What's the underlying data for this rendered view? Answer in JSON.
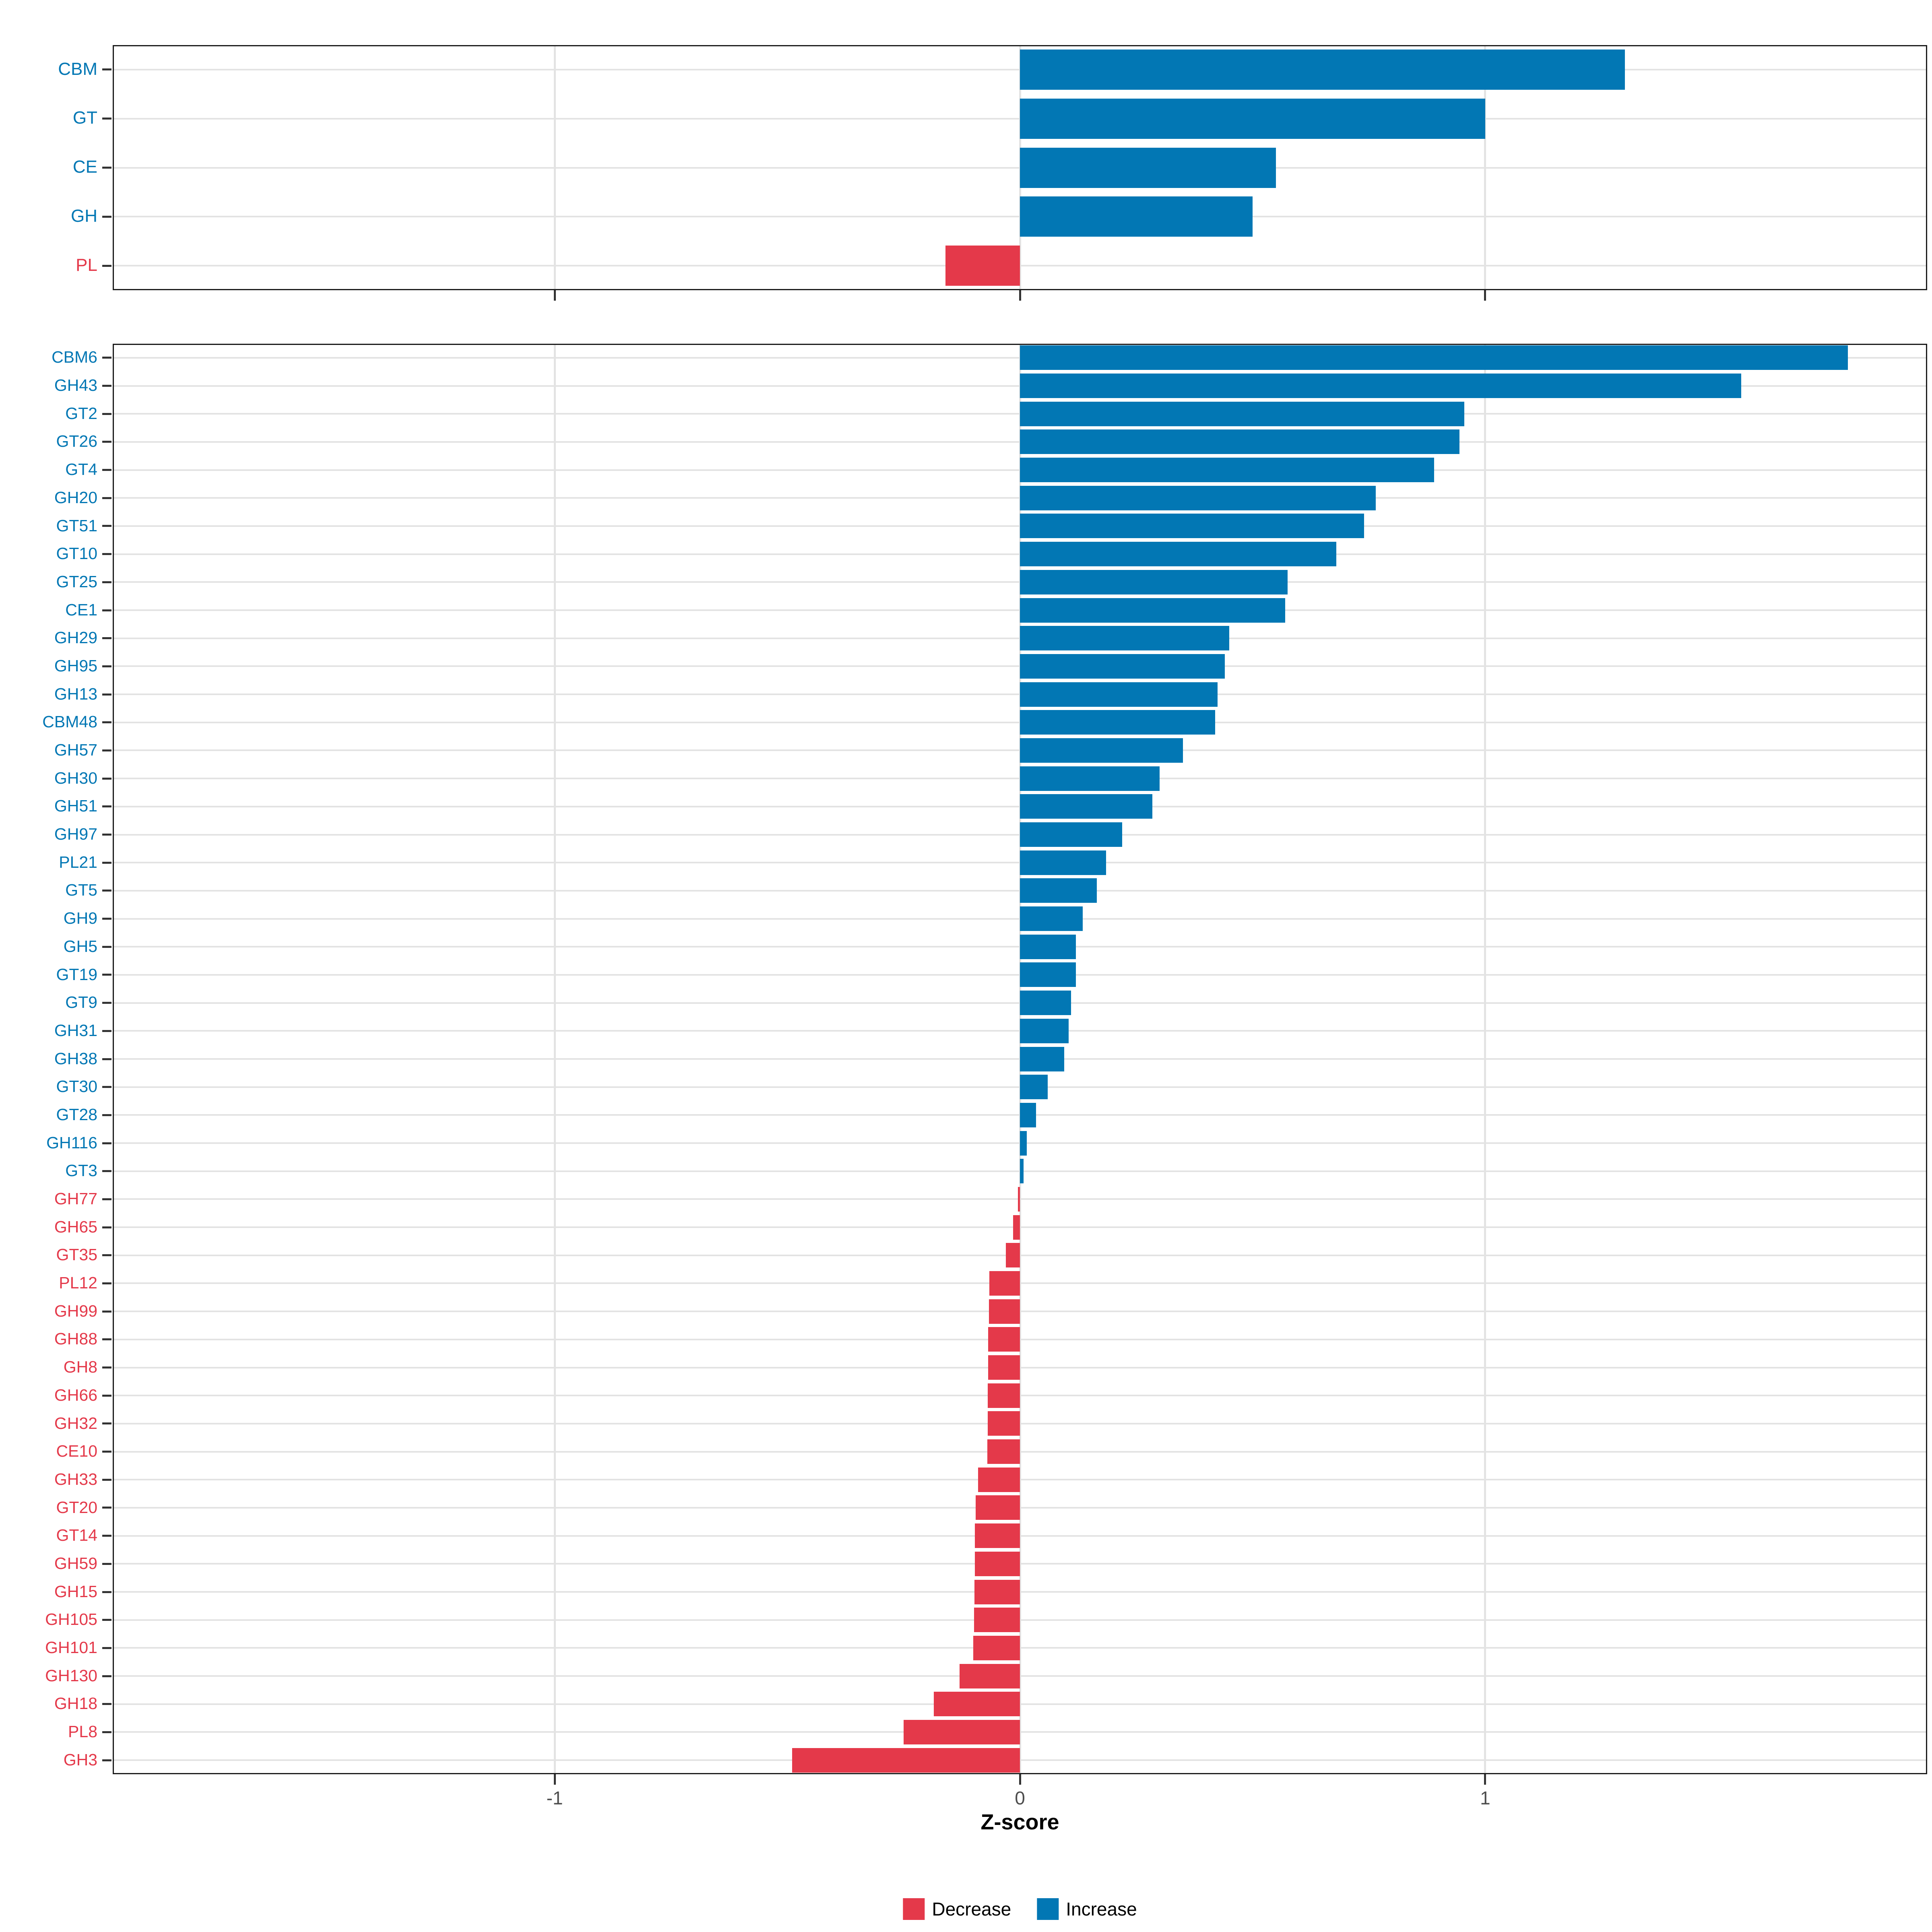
{
  "axis": {
    "title": "Z-score",
    "tick_values": [
      -1,
      0,
      1
    ],
    "tick_labels": [
      "-1",
      "0",
      "1"
    ],
    "xlim": [
      -1.95,
      1.95
    ]
  },
  "legend": {
    "items": [
      {
        "label": "Decrease",
        "color": "#e4394a"
      },
      {
        "label": "Increase",
        "color": "#0277b4"
      }
    ]
  },
  "colors": {
    "increase": "#0277b4",
    "decrease": "#e4394a",
    "grid": "#e3e3e3",
    "panel_border": "#1b1b1b",
    "tick": "#333333",
    "tick_label": "#4d4d4d"
  },
  "chart_data": [
    {
      "type": "bar",
      "orientation": "horizontal",
      "panel": "cazyme-classes",
      "categories": [
        "CBM",
        "GT",
        "CE",
        "GH",
        "PL"
      ],
      "values": [
        1.3,
        1.0,
        0.55,
        0.5,
        -0.16
      ]
    },
    {
      "type": "bar",
      "orientation": "horizontal",
      "panel": "cazyme-families",
      "categories": [
        "CBM6",
        "GH43",
        "GT2",
        "GT26",
        "GT4",
        "GH20",
        "GT51",
        "GT10",
        "GT25",
        "CE1",
        "GH29",
        "GH95",
        "GH13",
        "CBM48",
        "GH57",
        "GH30",
        "GH51",
        "GH97",
        "PL21",
        "GT5",
        "GH9",
        "GH5",
        "GT19",
        "GT9",
        "GH31",
        "GH38",
        "GT30",
        "GT28",
        "GH116",
        "GT3",
        "GH77",
        "GH65",
        "GT35",
        "PL12",
        "GH99",
        "GH88",
        "GH8",
        "GH66",
        "GH32",
        "CE10",
        "GH33",
        "GT20",
        "GT14",
        "GH59",
        "GH15",
        "GH105",
        "GH101",
        "GH130",
        "GH18",
        "PL8",
        "GH3"
      ],
      "values": [
        1.78,
        1.55,
        0.955,
        0.945,
        0.89,
        0.765,
        0.74,
        0.68,
        0.575,
        0.57,
        0.45,
        0.44,
        0.425,
        0.42,
        0.35,
        0.3,
        0.285,
        0.22,
        0.185,
        0.165,
        0.135,
        0.12,
        0.12,
        0.11,
        0.105,
        0.095,
        0.06,
        0.035,
        0.015,
        0.008,
        -0.004,
        -0.015,
        -0.03,
        -0.066,
        -0.067,
        -0.068,
        -0.068,
        -0.069,
        -0.069,
        -0.07,
        -0.09,
        -0.095,
        -0.097,
        -0.097,
        -0.098,
        -0.099,
        -0.1,
        -0.13,
        -0.185,
        -0.25,
        -0.49
      ]
    }
  ]
}
